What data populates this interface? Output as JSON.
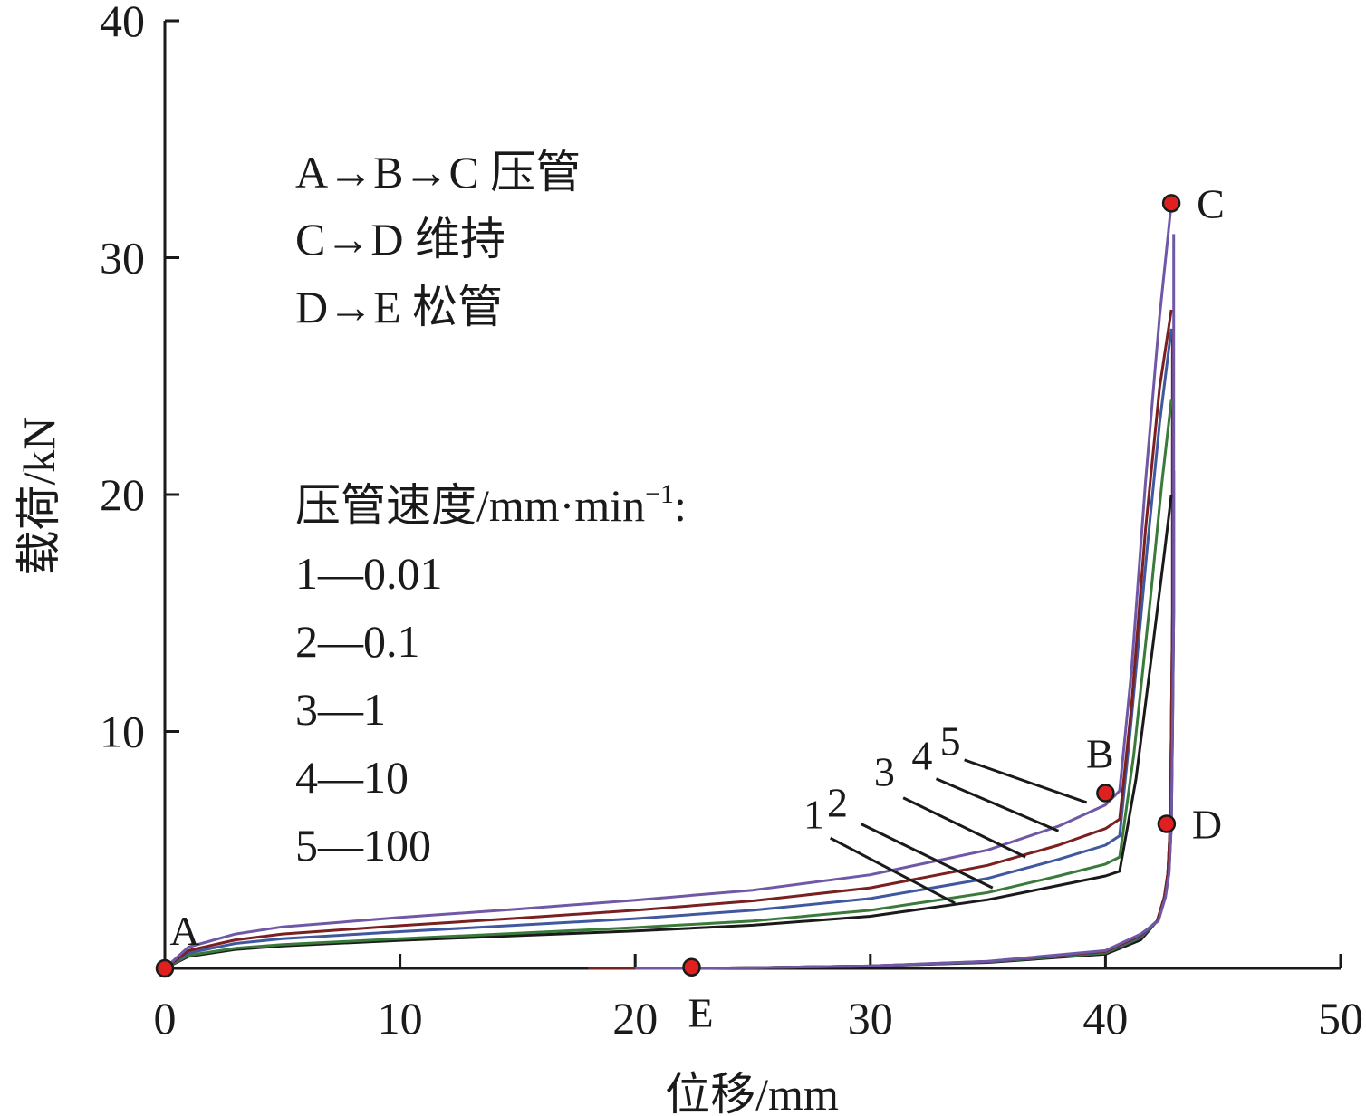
{
  "chart_data": {
    "type": "line",
    "xlabel": "位移/mm",
    "ylabel": "载荷/kN",
    "xlim": [
      0,
      50
    ],
    "ylim": [
      0,
      40
    ],
    "x_ticks": [
      0,
      10,
      20,
      30,
      40,
      50
    ],
    "y_ticks": [
      10,
      20,
      30,
      40
    ],
    "x_tick_labels": [
      "0",
      "10",
      "20",
      "30",
      "40",
      "50"
    ],
    "y_tick_labels": [
      "10",
      "20",
      "30",
      "40"
    ],
    "grid": false,
    "stage_legend": [
      "A→B→C  压管",
      "C→D  维持",
      "D→E  松管"
    ],
    "speed_legend_title": "压管速度/mm·min",
    "speed_legend_title_exp": "−1",
    "speed_legend_title_colon": ":",
    "speed_legend": [
      "1—0.01",
      "2—0.1",
      "3—1",
      "4—10",
      "5—100"
    ],
    "points": [
      {
        "label": "A",
        "x": 0,
        "y": 0
      },
      {
        "label": "B",
        "x": 40,
        "y": 7.4
      },
      {
        "label": "C",
        "x": 42.8,
        "y": 32.3
      },
      {
        "label": "D",
        "x": 42.6,
        "y": 6.1
      },
      {
        "label": "E",
        "x": 22.4,
        "y": 0.05
      }
    ],
    "series": [
      {
        "name": "1",
        "color": "#1a1a1a",
        "loading": [
          [
            0,
            0
          ],
          [
            1,
            0.5
          ],
          [
            3,
            0.8
          ],
          [
            5,
            0.95
          ],
          [
            10,
            1.18
          ],
          [
            15,
            1.38
          ],
          [
            20,
            1.58
          ],
          [
            25,
            1.82
          ],
          [
            30,
            2.2
          ],
          [
            35,
            2.9
          ],
          [
            38,
            3.5
          ],
          [
            40,
            3.9
          ],
          [
            40.6,
            4.1
          ],
          [
            41.3,
            8
          ],
          [
            42,
            13.5
          ],
          [
            42.5,
            17.5
          ],
          [
            42.8,
            20.0
          ]
        ],
        "unloading": [
          [
            42.9,
            21.0
          ],
          [
            42.9,
            15
          ],
          [
            42.85,
            10
          ],
          [
            42.8,
            6
          ],
          [
            42.7,
            4
          ],
          [
            42.5,
            3
          ],
          [
            42.2,
            2
          ],
          [
            41.5,
            1.2
          ],
          [
            40,
            0.6
          ],
          [
            35,
            0.25
          ],
          [
            30,
            0.1
          ],
          [
            25,
            0.03
          ],
          [
            22,
            0.0
          ],
          [
            19,
            0.0
          ]
        ]
      },
      {
        "name": "2",
        "color": "#3a7a3a",
        "loading": [
          [
            0,
            0
          ],
          [
            1,
            0.55
          ],
          [
            3,
            0.85
          ],
          [
            5,
            1.0
          ],
          [
            10,
            1.25
          ],
          [
            15,
            1.48
          ],
          [
            20,
            1.72
          ],
          [
            25,
            2.0
          ],
          [
            30,
            2.45
          ],
          [
            35,
            3.2
          ],
          [
            38,
            3.9
          ],
          [
            40,
            4.4
          ],
          [
            40.6,
            4.7
          ],
          [
            41.2,
            9
          ],
          [
            41.9,
            15.5
          ],
          [
            42.4,
            20.5
          ],
          [
            42.8,
            24.0
          ]
        ],
        "unloading": [
          [
            42.85,
            23.5
          ],
          [
            42.85,
            15
          ],
          [
            42.8,
            10
          ],
          [
            42.75,
            6
          ],
          [
            42.65,
            4
          ],
          [
            42.5,
            3
          ],
          [
            42.2,
            2
          ],
          [
            41.5,
            1.3
          ],
          [
            40,
            0.65
          ],
          [
            35,
            0.27
          ],
          [
            30,
            0.1
          ],
          [
            25,
            0.03
          ],
          [
            22,
            0.0
          ],
          [
            19.5,
            0.0
          ]
        ]
      },
      {
        "name": "3",
        "color": "#3f58a0",
        "loading": [
          [
            0,
            0
          ],
          [
            1,
            0.65
          ],
          [
            3,
            1.05
          ],
          [
            5,
            1.25
          ],
          [
            10,
            1.55
          ],
          [
            15,
            1.82
          ],
          [
            20,
            2.1
          ],
          [
            25,
            2.45
          ],
          [
            30,
            2.95
          ],
          [
            35,
            3.8
          ],
          [
            38,
            4.6
          ],
          [
            40,
            5.2
          ],
          [
            40.6,
            5.6
          ],
          [
            41.1,
            10.5
          ],
          [
            41.8,
            18
          ],
          [
            42.3,
            23
          ],
          [
            42.8,
            27.0
          ]
        ],
        "unloading": [
          [
            42.85,
            26
          ],
          [
            42.85,
            15
          ],
          [
            42.8,
            10
          ],
          [
            42.75,
            6
          ],
          [
            42.65,
            4
          ],
          [
            42.5,
            3
          ],
          [
            42.2,
            2
          ],
          [
            41.5,
            1.35
          ],
          [
            40,
            0.7
          ],
          [
            35,
            0.28
          ],
          [
            30,
            0.1
          ],
          [
            25,
            0.03
          ],
          [
            22,
            0.0
          ],
          [
            20,
            0.0
          ]
        ]
      },
      {
        "name": "4",
        "color": "#7a2020",
        "loading": [
          [
            0,
            0
          ],
          [
            1,
            0.75
          ],
          [
            3,
            1.2
          ],
          [
            5,
            1.45
          ],
          [
            10,
            1.8
          ],
          [
            15,
            2.12
          ],
          [
            20,
            2.45
          ],
          [
            25,
            2.85
          ],
          [
            30,
            3.4
          ],
          [
            35,
            4.35
          ],
          [
            38,
            5.2
          ],
          [
            40,
            5.9
          ],
          [
            40.6,
            6.3
          ],
          [
            41.1,
            11
          ],
          [
            41.7,
            18.5
          ],
          [
            42.3,
            24.5
          ],
          [
            42.8,
            27.8
          ]
        ],
        "unloading": [
          [
            42.85,
            27
          ],
          [
            42.85,
            15
          ],
          [
            42.8,
            10
          ],
          [
            42.75,
            6
          ],
          [
            42.65,
            4
          ],
          [
            42.5,
            3
          ],
          [
            42.2,
            2
          ],
          [
            41.5,
            1.4
          ],
          [
            40,
            0.72
          ],
          [
            35,
            0.29
          ],
          [
            30,
            0.1
          ],
          [
            25,
            0.03
          ],
          [
            22,
            0.0
          ],
          [
            18,
            0.0
          ]
        ]
      },
      {
        "name": "5",
        "color": "#7058a8",
        "loading": [
          [
            0,
            0
          ],
          [
            1,
            0.9
          ],
          [
            3,
            1.45
          ],
          [
            5,
            1.75
          ],
          [
            10,
            2.15
          ],
          [
            15,
            2.5
          ],
          [
            20,
            2.88
          ],
          [
            25,
            3.3
          ],
          [
            30,
            3.95
          ],
          [
            35,
            5.0
          ],
          [
            38,
            6.0
          ],
          [
            40,
            6.9
          ],
          [
            40.6,
            7.5
          ],
          [
            41.1,
            12.5
          ],
          [
            41.7,
            20.5
          ],
          [
            42.3,
            27.5
          ],
          [
            42.8,
            32.3
          ]
        ],
        "unloading": [
          [
            42.9,
            31
          ],
          [
            42.9,
            15
          ],
          [
            42.85,
            10
          ],
          [
            42.8,
            6
          ],
          [
            42.7,
            4
          ],
          [
            42.55,
            3
          ],
          [
            42.25,
            2
          ],
          [
            41.5,
            1.45
          ],
          [
            40,
            0.75
          ],
          [
            35,
            0.3
          ],
          [
            30,
            0.1
          ],
          [
            25,
            0.03
          ],
          [
            22,
            0.0
          ],
          [
            20,
            0.0
          ]
        ]
      }
    ],
    "curve_labels": [
      {
        "text": "1",
        "x": 27.6,
        "y": 5.9,
        "lx1": 28.3,
        "ly1": 5.5,
        "lx2": 33.6,
        "ly2": 2.75
      },
      {
        "text": "2",
        "x": 28.6,
        "y": 6.4,
        "lx1": 29.6,
        "ly1": 6.1,
        "lx2": 35.2,
        "ly2": 3.4
      },
      {
        "text": "3",
        "x": 30.6,
        "y": 7.7,
        "lx1": 31.4,
        "ly1": 7.2,
        "lx2": 36.6,
        "ly2": 4.7
      },
      {
        "text": "4",
        "x": 32.2,
        "y": 8.4,
        "lx1": 32.8,
        "ly1": 8.0,
        "lx2": 38.0,
        "ly2": 5.8
      },
      {
        "text": "5",
        "x": 33.4,
        "y": 9.0,
        "lx1": 34.0,
        "ly1": 8.8,
        "lx2": 39.2,
        "ly2": 7.0
      }
    ]
  }
}
